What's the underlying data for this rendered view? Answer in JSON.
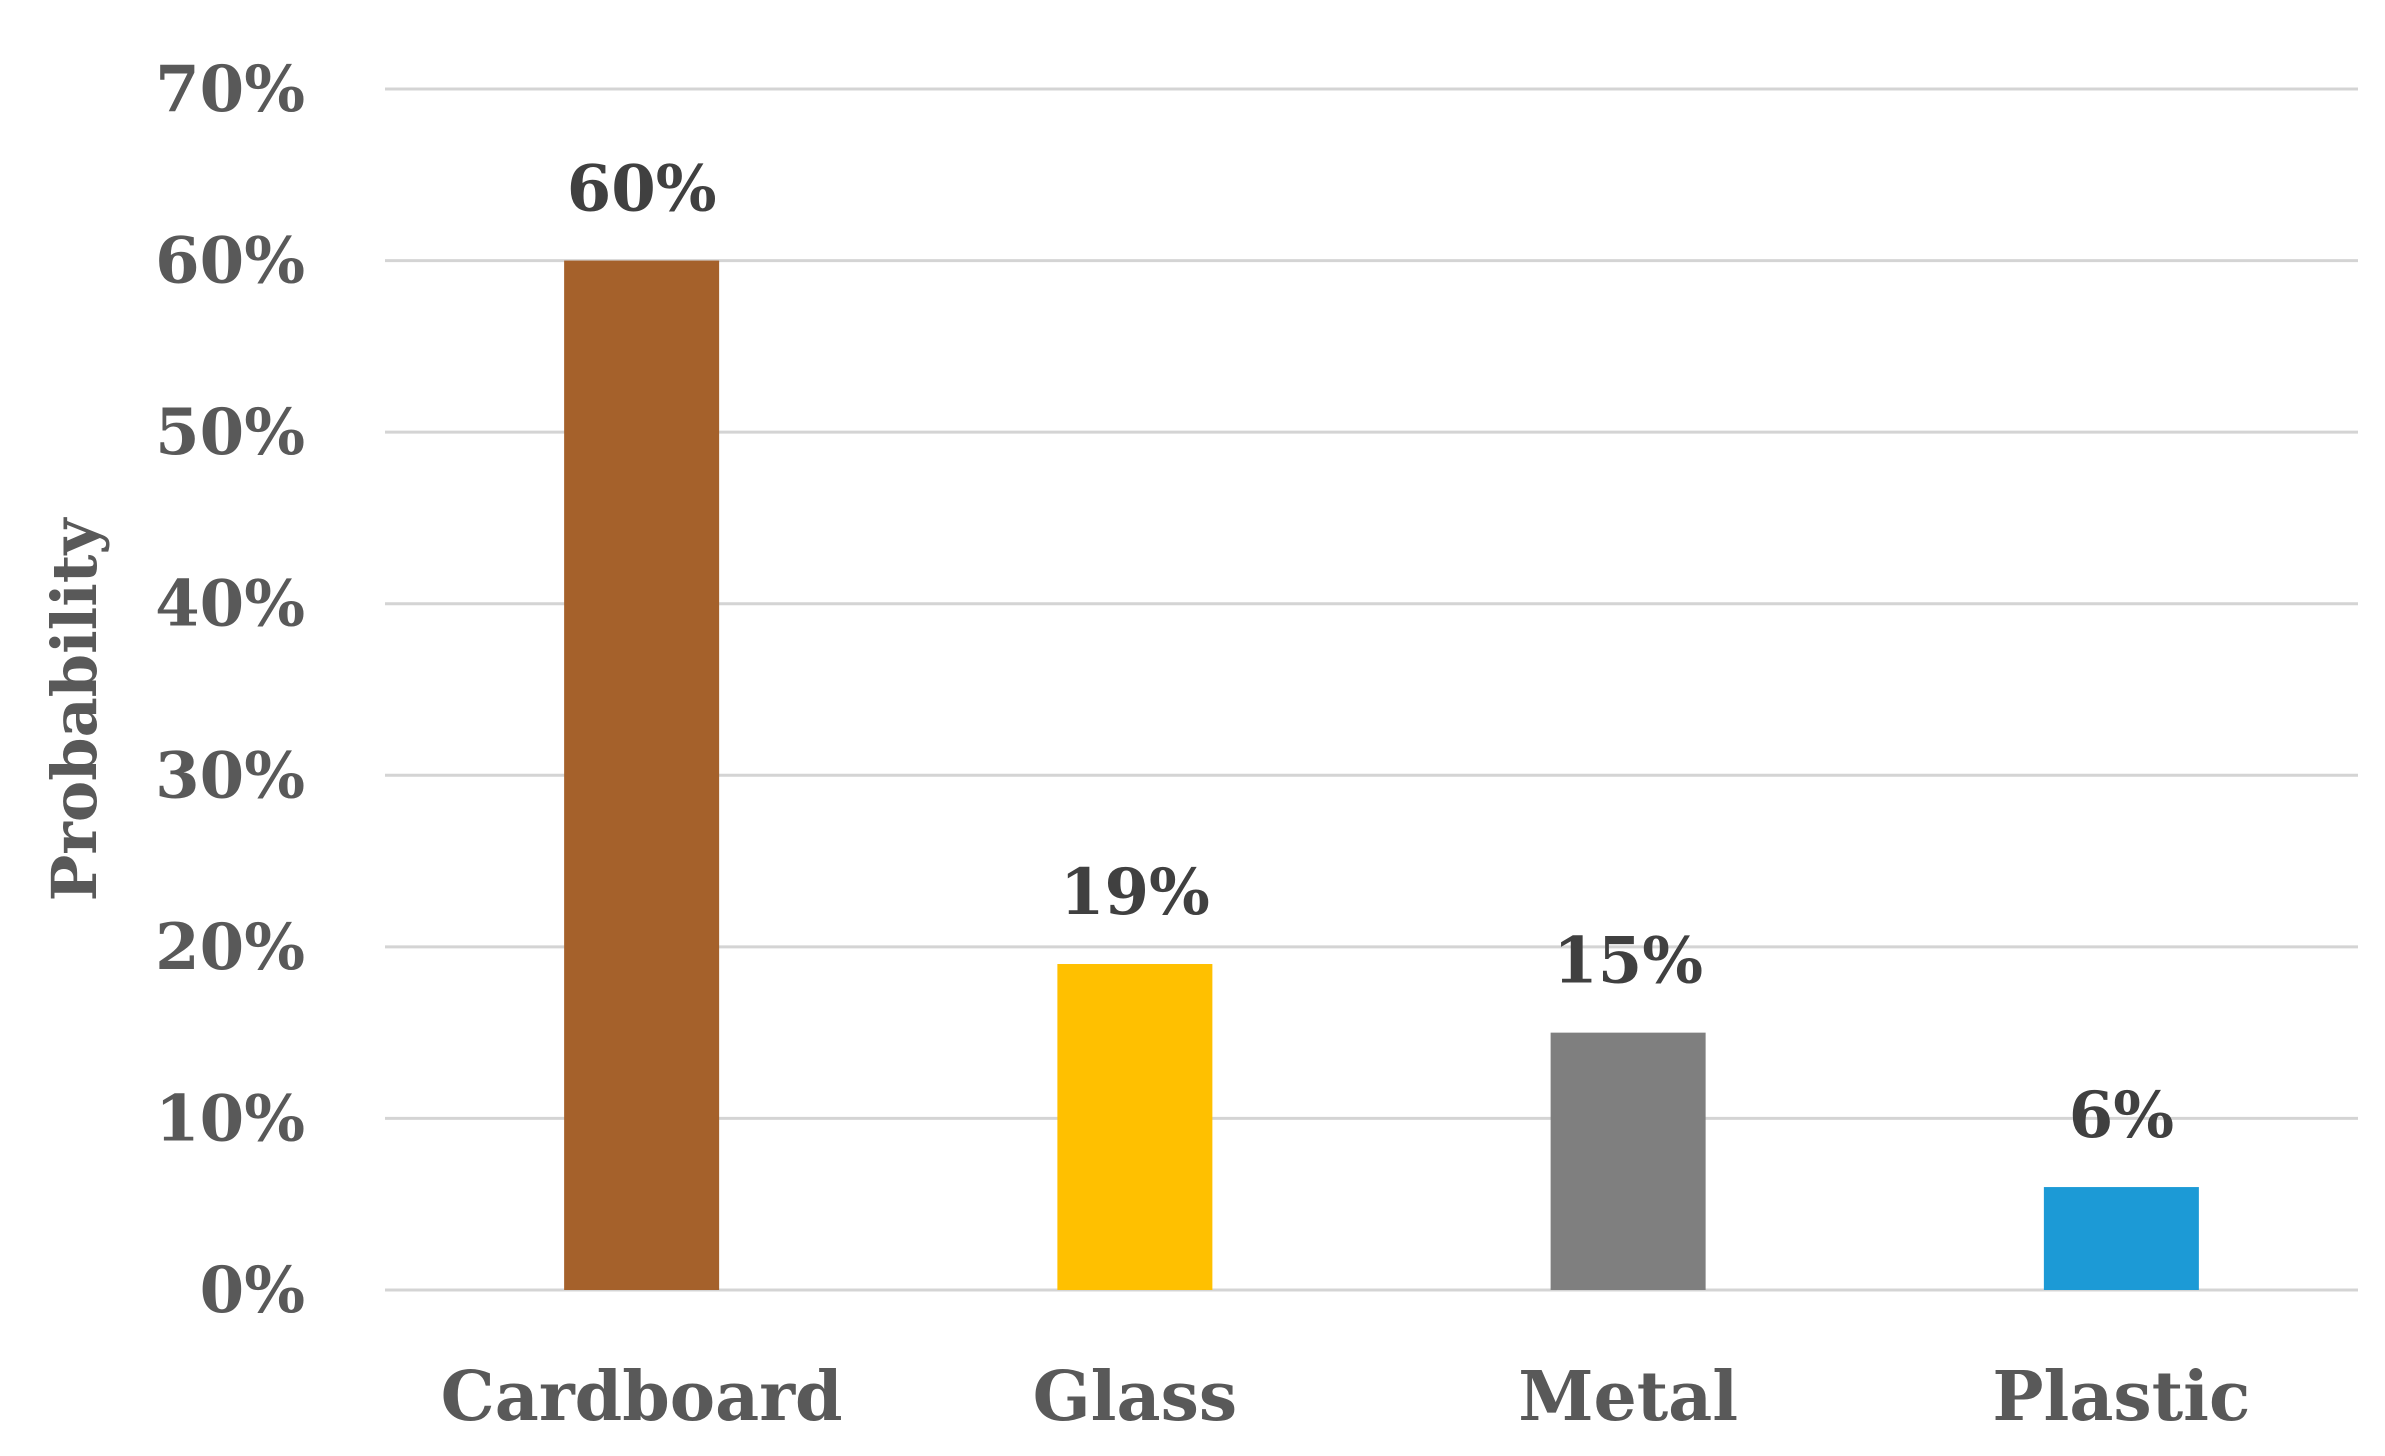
{
  "chart_data": {
    "type": "bar",
    "title": "",
    "xlabel": "",
    "ylabel": "Probability",
    "categories": [
      "Cardboard",
      "Glass",
      "Metal",
      "Plastic"
    ],
    "values": [
      60,
      19,
      15,
      6
    ],
    "data_labels": [
      "60%",
      "19%",
      "15%",
      "6%"
    ],
    "colors": [
      "#A5612B",
      "#FFC000",
      "#7F7F7F",
      "#1C9AD6"
    ],
    "ylim": [
      0,
      70
    ],
    "yticks": [
      0,
      10,
      20,
      30,
      40,
      50,
      60,
      70
    ],
    "ytick_labels": [
      "0%",
      "10%",
      "20%",
      "30%",
      "40%",
      "50%",
      "60%",
      "70%"
    ],
    "grid": true,
    "legend": "none"
  }
}
